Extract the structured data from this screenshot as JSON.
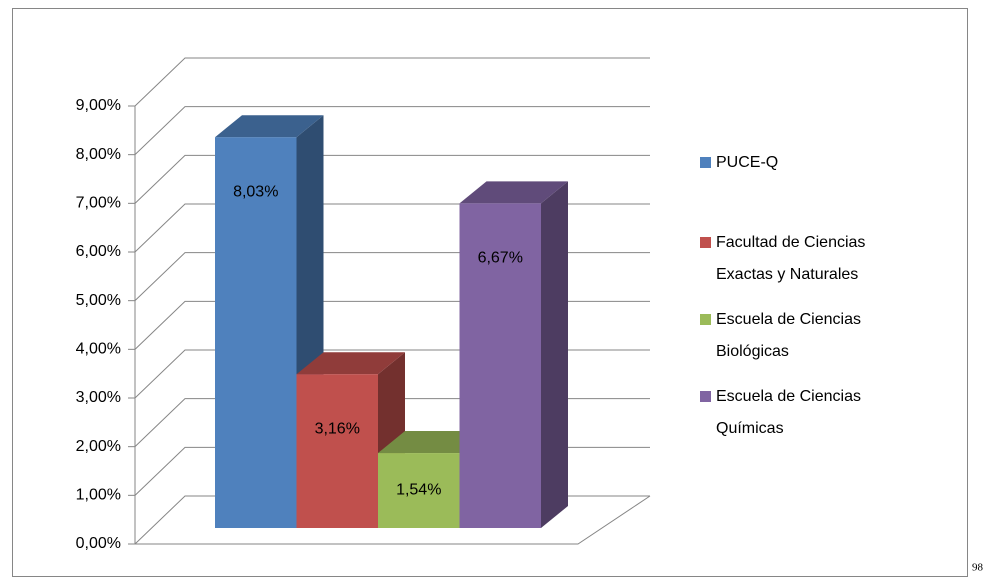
{
  "chart_data": {
    "type": "bar3d",
    "categories": [
      null
    ],
    "series": [
      {
        "name": "PUCE-Q",
        "color": "#4f81bd",
        "values": [
          8.03
        ],
        "value_labels": [
          "8,03%"
        ]
      },
      {
        "name": "Facultad de Ciencias Exactas y Naturales",
        "color": "#c0504d",
        "values": [
          3.16
        ],
        "value_labels": [
          "3,16%"
        ]
      },
      {
        "name": "Escuela de Ciencias Biológicas",
        "color": "#9bbb59",
        "values": [
          1.54
        ],
        "value_labels": [
          "1,54%"
        ]
      },
      {
        "name": "Escuela de Ciencias Químicas",
        "color": "#8064a2",
        "values": [
          6.67
        ],
        "value_labels": [
          "6,67%"
        ]
      }
    ],
    "ylim": [
      0,
      9
    ],
    "yticks": [
      {
        "value": 0,
        "label": "0,00%"
      },
      {
        "value": 1,
        "label": "1,00%"
      },
      {
        "value": 2,
        "label": "2,00%"
      },
      {
        "value": 3,
        "label": "3,00%"
      },
      {
        "value": 4,
        "label": "4,00%"
      },
      {
        "value": 5,
        "label": "5,00%"
      },
      {
        "value": 6,
        "label": "6,00%"
      },
      {
        "value": 7,
        "label": "7,00%"
      },
      {
        "value": 8,
        "label": "8,00%"
      },
      {
        "value": 9,
        "label": "9,00%"
      }
    ],
    "grid": true,
    "legend": "right"
  },
  "page_number": "98"
}
